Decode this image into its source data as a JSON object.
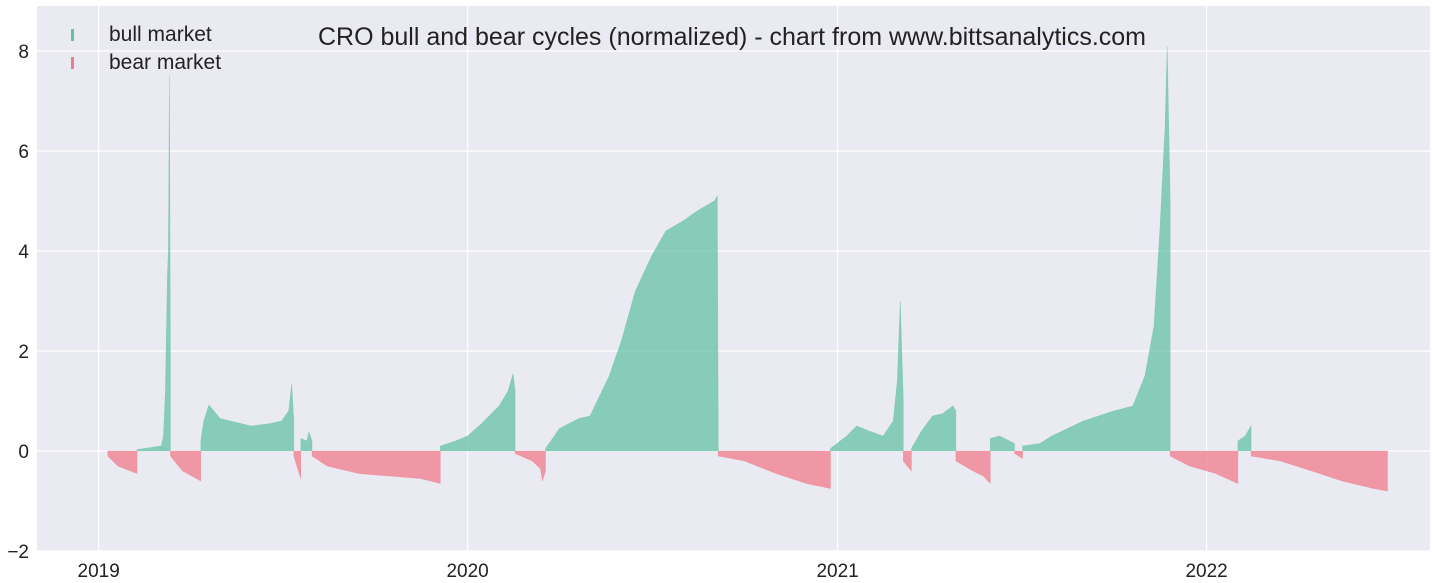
{
  "chart_data": {
    "type": "bar",
    "title": "CRO bull and bear cycles (normalized)  - chart from www.bittsanalytics.com",
    "xlabel": "",
    "ylabel": "",
    "xlim": [
      "2018-11-01",
      "2022-08-10"
    ],
    "ylim": [
      -2,
      8.9
    ],
    "x_ticks": [
      "2019",
      "2020",
      "2021",
      "2022"
    ],
    "y_ticks": [
      "−2",
      "0",
      "2",
      "4",
      "6",
      "8"
    ],
    "grid": true,
    "legend_position": "top-left",
    "colors": {
      "bull": "#66c2a5",
      "bear": "#f07b8b",
      "background": "#eaeaf2",
      "grid": "#ffffff"
    },
    "series": [
      {
        "name": "bull market",
        "color": "#66c2a5",
        "segments": [
          {
            "start": "2019-02-08",
            "end": "2019-03-04",
            "points": [
              [
                "2019-02-08",
                0.03
              ],
              [
                "2019-03-04",
                0.1
              ]
            ]
          },
          {
            "start": "2019-03-04",
            "end": "2019-03-13",
            "points": [
              [
                "2019-03-04",
                0.1
              ],
              [
                "2019-03-06",
                0.3
              ],
              [
                "2019-03-08",
                1.2
              ],
              [
                "2019-03-10",
                3.5
              ],
              [
                "2019-03-11",
                4.0
              ],
              [
                "2019-03-12",
                7.5
              ],
              [
                "2019-03-13",
                2.0
              ]
            ]
          },
          {
            "start": "2019-04-12",
            "end": "2019-07-13",
            "points": [
              [
                "2019-04-12",
                0.2
              ],
              [
                "2019-04-15",
                0.6
              ],
              [
                "2019-04-20",
                0.92
              ],
              [
                "2019-05-01",
                0.65
              ],
              [
                "2019-06-01",
                0.5
              ],
              [
                "2019-06-20",
                0.55
              ],
              [
                "2019-07-01",
                0.6
              ],
              [
                "2019-07-08",
                0.8
              ],
              [
                "2019-07-11",
                1.35
              ],
              [
                "2019-07-13",
                0.6
              ]
            ]
          },
          {
            "start": "2019-07-20",
            "end": "2019-07-31",
            "points": [
              [
                "2019-07-20",
                0.25
              ],
              [
                "2019-07-26",
                0.2
              ],
              [
                "2019-07-28",
                0.38
              ],
              [
                "2019-07-31",
                0.2
              ]
            ]
          },
          {
            "start": "2019-12-05",
            "end": "2020-02-17",
            "points": [
              [
                "2019-12-05",
                0.1
              ],
              [
                "2019-12-20",
                0.2
              ],
              [
                "2020-01-01",
                0.3
              ],
              [
                "2020-01-15",
                0.55
              ],
              [
                "2020-02-01",
                0.9
              ],
              [
                "2020-02-10",
                1.2
              ],
              [
                "2020-02-15",
                1.55
              ],
              [
                "2020-02-17",
                1.2
              ]
            ]
          },
          {
            "start": "2020-03-18",
            "end": "2020-09-05",
            "points": [
              [
                "2020-03-18",
                0.05
              ],
              [
                "2020-04-01",
                0.45
              ],
              [
                "2020-04-20",
                0.65
              ],
              [
                "2020-05-01",
                0.7
              ],
              [
                "2020-05-20",
                1.5
              ],
              [
                "2020-06-01",
                2.2
              ],
              [
                "2020-06-15",
                3.2
              ],
              [
                "2020-07-01",
                3.9
              ],
              [
                "2020-07-15",
                4.4
              ],
              [
                "2020-08-01",
                4.6
              ],
              [
                "2020-08-15",
                4.8
              ],
              [
                "2020-09-01",
                5.0
              ],
              [
                "2020-09-04",
                5.1
              ]
            ]
          },
          {
            "start": "2020-12-25",
            "end": "2021-03-07",
            "points": [
              [
                "2020-12-25",
                0.05
              ],
              [
                "2021-01-10",
                0.3
              ],
              [
                "2021-01-20",
                0.5
              ],
              [
                "2021-02-01",
                0.4
              ],
              [
                "2021-02-15",
                0.3
              ],
              [
                "2021-02-25",
                0.6
              ],
              [
                "2021-03-01",
                1.4
              ],
              [
                "2021-03-04",
                3.0
              ],
              [
                "2021-03-07",
                1.0
              ]
            ]
          },
          {
            "start": "2021-03-15",
            "end": "2021-04-28",
            "points": [
              [
                "2021-03-15",
                0.05
              ],
              [
                "2021-03-25",
                0.4
              ],
              [
                "2021-04-05",
                0.7
              ],
              [
                "2021-04-15",
                0.75
              ],
              [
                "2021-04-25",
                0.9
              ],
              [
                "2021-04-28",
                0.8
              ]
            ]
          },
          {
            "start": "2021-06-01",
            "end": "2021-06-25",
            "points": [
              [
                "2021-06-01",
                0.25
              ],
              [
                "2021-06-10",
                0.3
              ],
              [
                "2021-06-25",
                0.15
              ]
            ]
          },
          {
            "start": "2021-07-03",
            "end": "2021-11-26",
            "points": [
              [
                "2021-07-03",
                0.1
              ],
              [
                "2021-07-20",
                0.15
              ],
              [
                "2021-08-01",
                0.3
              ],
              [
                "2021-09-01",
                0.6
              ],
              [
                "2021-10-01",
                0.8
              ],
              [
                "2021-10-20",
                0.9
              ],
              [
                "2021-11-01",
                1.5
              ],
              [
                "2021-11-10",
                2.5
              ],
              [
                "2021-11-16",
                4.5
              ],
              [
                "2021-11-21",
                6.5
              ],
              [
                "2021-11-23",
                8.1
              ],
              [
                "2021-11-26",
                5.0
              ]
            ]
          },
          {
            "start": "2022-02-01",
            "end": "2022-02-14",
            "points": [
              [
                "2022-02-01",
                0.2
              ],
              [
                "2022-02-08",
                0.3
              ],
              [
                "2022-02-14",
                0.5
              ]
            ]
          }
        ]
      },
      {
        "name": "bear market",
        "color": "#f07b8b",
        "segments": [
          {
            "start": "2019-01-10",
            "end": "2019-02-08",
            "points": [
              [
                "2019-01-10",
                -0.1
              ],
              [
                "2019-01-20",
                -0.3
              ],
              [
                "2019-02-08",
                -0.45
              ]
            ]
          },
          {
            "start": "2019-03-13",
            "end": "2019-04-12",
            "points": [
              [
                "2019-03-13",
                -0.1
              ],
              [
                "2019-03-25",
                -0.4
              ],
              [
                "2019-04-12",
                -0.6
              ]
            ]
          },
          {
            "start": "2019-07-13",
            "end": "2019-07-20",
            "points": [
              [
                "2019-07-13",
                -0.1
              ],
              [
                "2019-07-20",
                -0.55
              ]
            ]
          },
          {
            "start": "2019-07-31",
            "end": "2019-12-05",
            "points": [
              [
                "2019-07-31",
                -0.1
              ],
              [
                "2019-08-15",
                -0.3
              ],
              [
                "2019-09-15",
                -0.45
              ],
              [
                "2019-10-15",
                -0.5
              ],
              [
                "2019-11-15",
                -0.55
              ],
              [
                "2019-12-05",
                -0.65
              ]
            ]
          },
          {
            "start": "2020-02-17",
            "end": "2020-03-18",
            "points": [
              [
                "2020-02-17",
                -0.05
              ],
              [
                "2020-03-05",
                -0.2
              ],
              [
                "2020-03-13",
                -0.35
              ],
              [
                "2020-03-15",
                -0.6
              ],
              [
                "2020-03-18",
                -0.4
              ]
            ]
          },
          {
            "start": "2020-09-05",
            "end": "2020-12-25",
            "points": [
              [
                "2020-09-05",
                -0.1
              ],
              [
                "2020-10-01",
                -0.2
              ],
              [
                "2020-11-01",
                -0.45
              ],
              [
                "2020-12-01",
                -0.65
              ],
              [
                "2020-12-25",
                -0.75
              ]
            ]
          },
          {
            "start": "2021-03-07",
            "end": "2021-03-15",
            "points": [
              [
                "2021-03-07",
                -0.2
              ],
              [
                "2021-03-15",
                -0.4
              ]
            ]
          },
          {
            "start": "2021-04-28",
            "end": "2021-06-01",
            "points": [
              [
                "2021-04-28",
                -0.2
              ],
              [
                "2021-05-15",
                -0.4
              ],
              [
                "2021-05-25",
                -0.5
              ],
              [
                "2021-06-01",
                -0.65
              ]
            ]
          },
          {
            "start": "2021-06-25",
            "end": "2021-07-03",
            "points": [
              [
                "2021-06-25",
                -0.05
              ],
              [
                "2021-07-03",
                -0.15
              ]
            ]
          },
          {
            "start": "2021-11-26",
            "end": "2022-02-01",
            "points": [
              [
                "2021-11-26",
                -0.1
              ],
              [
                "2021-12-15",
                -0.3
              ],
              [
                "2022-01-10",
                -0.45
              ],
              [
                "2022-02-01",
                -0.65
              ]
            ]
          },
          {
            "start": "2022-02-14",
            "end": "2022-06-29",
            "points": [
              [
                "2022-02-14",
                -0.1
              ],
              [
                "2022-03-15",
                -0.2
              ],
              [
                "2022-04-15",
                -0.4
              ],
              [
                "2022-05-15",
                -0.6
              ],
              [
                "2022-06-15",
                -0.75
              ],
              [
                "2022-06-29",
                -0.8
              ]
            ]
          }
        ]
      }
    ]
  }
}
